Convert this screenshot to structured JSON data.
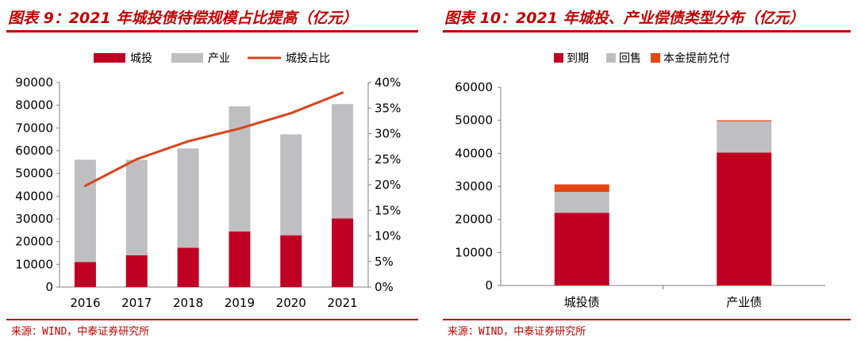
{
  "colors": {
    "accent": "#c00000",
    "city_investment": "#c00023",
    "industrial": "#bfbfc1",
    "ratio_line": "#d8441c",
    "maturity": "#c00023",
    "putback": "#bfbfc1",
    "early_redemption": "#e2470f"
  },
  "left_panel": {
    "title": "图表 9：2021 年城投债待偿规模占比提高（亿元）",
    "source": "来源：WIND，中泰证券研究所"
  },
  "right_panel": {
    "title": "图表 10：2021 年城投、产业偿债类型分布（亿元）",
    "source": "来源：WIND，中泰证券研究所"
  },
  "chart_data": [
    {
      "type": "bar",
      "stacked": true,
      "title": "2021 年城投债待偿规模占比提高（亿元）",
      "categories": [
        "2016",
        "2017",
        "2018",
        "2019",
        "2020",
        "2021"
      ],
      "series": [
        {
          "name": "城投",
          "kind": "bar",
          "axis": "left",
          "color_key": "city_investment",
          "values": [
            11000,
            14000,
            17300,
            24500,
            22800,
            30200
          ]
        },
        {
          "name": "产业",
          "kind": "bar",
          "axis": "left",
          "color_key": "industrial",
          "values": [
            45000,
            42000,
            43700,
            55000,
            44400,
            50300
          ]
        },
        {
          "name": "城投占比",
          "kind": "line",
          "axis": "right",
          "color_key": "ratio_line",
          "values": [
            0.198,
            0.25,
            0.285,
            0.31,
            0.34,
            0.38
          ]
        }
      ],
      "ylim": [
        0,
        90000
      ],
      "yticks": [
        0,
        10000,
        20000,
        30000,
        40000,
        50000,
        60000,
        70000,
        80000,
        90000
      ],
      "ytick_labels": [
        "0",
        "10000",
        "20000",
        "30000",
        "40000",
        "50000",
        "60000",
        "70000",
        "80000",
        "90000"
      ],
      "y2lim": [
        0,
        0.4
      ],
      "y2ticks": [
        0,
        0.05,
        0.1,
        0.15,
        0.2,
        0.25,
        0.3,
        0.35,
        0.4
      ],
      "y2tick_labels": [
        "0%",
        "5%",
        "10%",
        "15%",
        "20%",
        "25%",
        "30%",
        "35%",
        "40%"
      ],
      "legend": {
        "position": "top",
        "entries": [
          "城投",
          "产业",
          "城投占比"
        ]
      },
      "grid": false
    },
    {
      "type": "bar",
      "stacked": true,
      "title": "2021 年城投、产业偿债类型分布（亿元）",
      "categories": [
        "城投债",
        "产业债"
      ],
      "series": [
        {
          "name": "到期",
          "color_key": "maturity",
          "values": [
            22000,
            40200
          ]
        },
        {
          "name": "回售",
          "color_key": "putback",
          "values": [
            6300,
            9500
          ]
        },
        {
          "name": "本金提前兑付",
          "color_key": "early_redemption",
          "values": [
            2300,
            300
          ]
        }
      ],
      "ylim": [
        0,
        60000
      ],
      "yticks": [
        0,
        10000,
        20000,
        30000,
        40000,
        50000,
        60000
      ],
      "ytick_labels": [
        "0",
        "10000",
        "20000",
        "30000",
        "40000",
        "50000",
        "60000"
      ],
      "legend": {
        "position": "top",
        "entries": [
          "到期",
          "回售",
          "本金提前兑付"
        ]
      },
      "grid": false
    }
  ]
}
